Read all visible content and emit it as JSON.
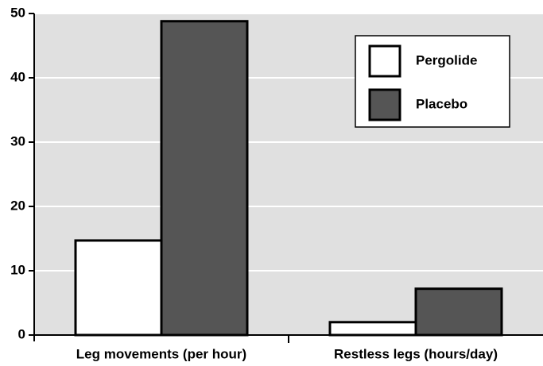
{
  "chart_data": {
    "type": "bar",
    "categories": [
      "Leg movements (per hour)",
      "Restless legs (hours/day)"
    ],
    "series": [
      {
        "name": "Pergolide",
        "color": "#ffffff",
        "values": [
          14.7,
          2.0
        ]
      },
      {
        "name": "Placebo",
        "color": "#555555",
        "values": [
          48.8,
          7.2
        ]
      }
    ],
    "ylim": [
      0,
      50
    ],
    "yticks": [
      0,
      10,
      20,
      30,
      40,
      50
    ],
    "grid": true,
    "legend": "upper right"
  }
}
